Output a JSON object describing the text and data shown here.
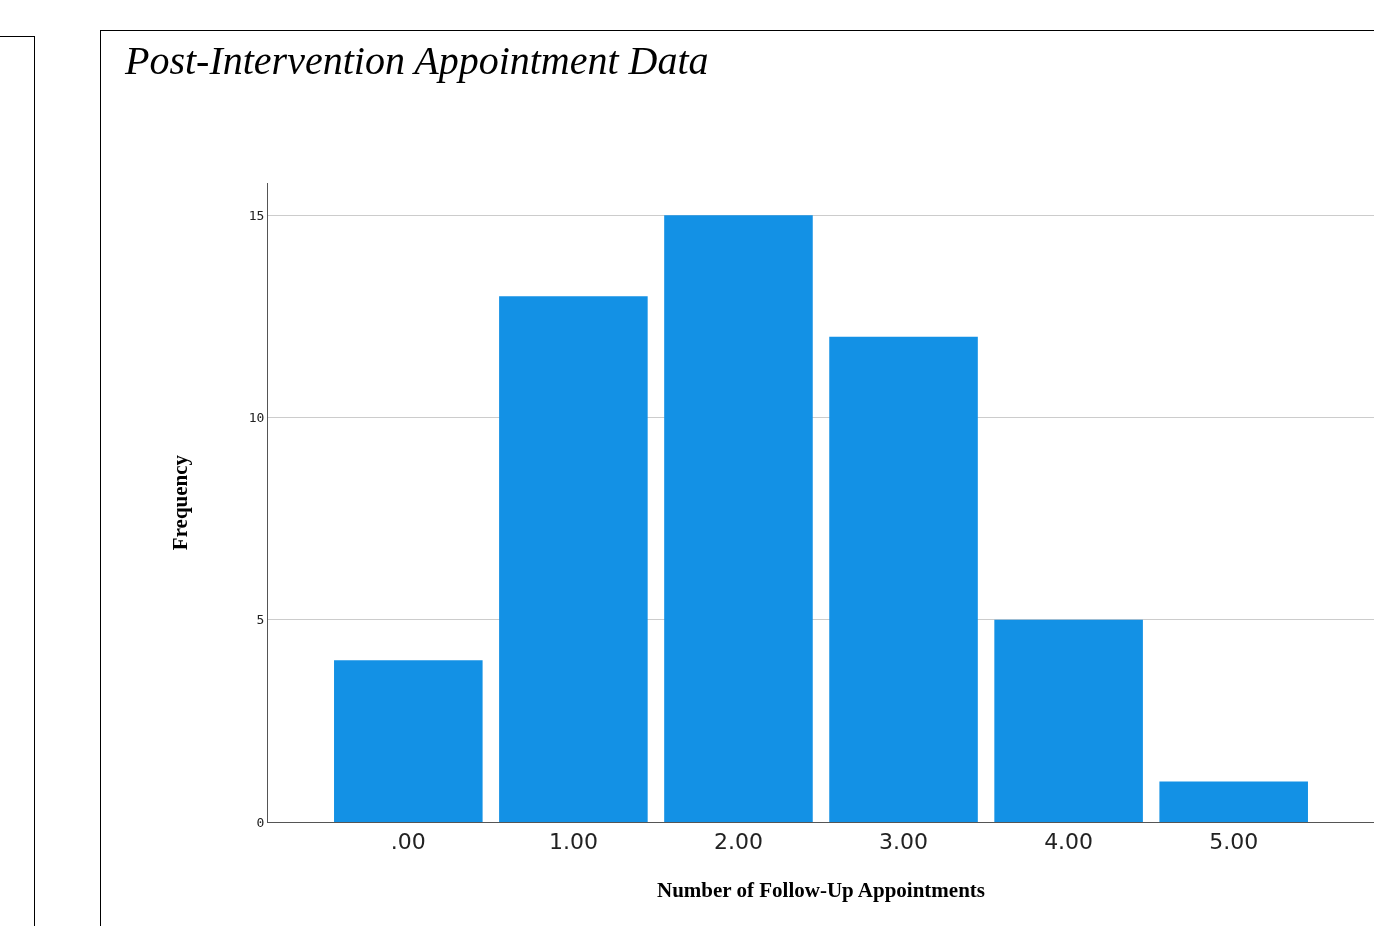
{
  "chart_data": {
    "type": "bar",
    "title": "Post-Intervention Appointment Data",
    "xlabel": "Number of Follow-Up Appointments",
    "ylabel": "Frequency",
    "categories": [
      ".00",
      "1.00",
      "2.00",
      "3.00",
      "4.00",
      "5.00"
    ],
    "values": [
      4,
      13,
      15,
      12,
      5,
      1
    ],
    "color": "#1391e5",
    "ylim": [
      0,
      15.8
    ],
    "yticks": [
      0,
      5,
      10,
      15
    ],
    "grid": "y"
  }
}
